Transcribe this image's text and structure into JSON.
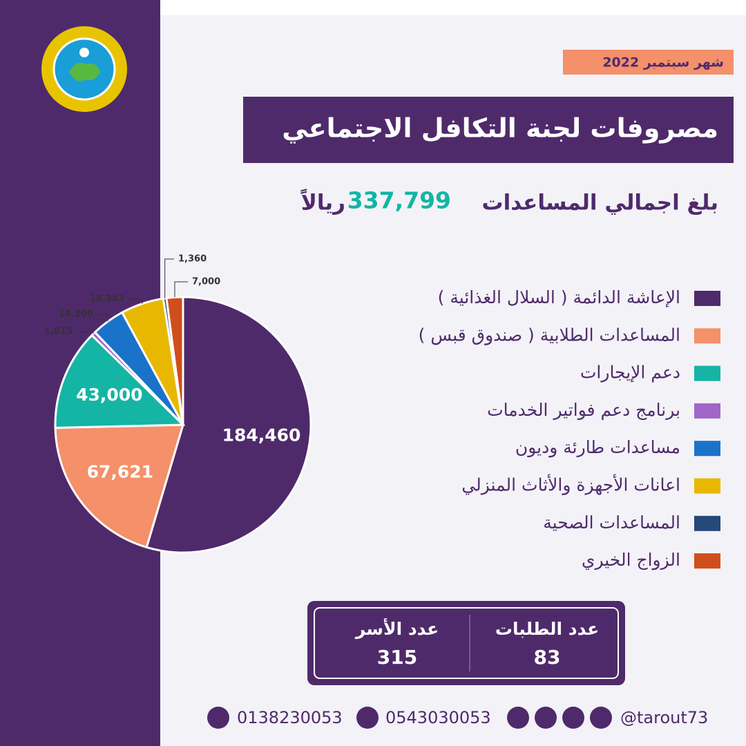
{
  "header": {
    "month": "شهر سبتمبر 2022",
    "total_prefix": "بلغ اجمالي المساعدات",
    "total": "337,799",
    "total_suffix": "ريالاً"
  },
  "chart_data": {
    "type": "pie",
    "title": "مصروفات لجنة التكافل الاجتماعي",
    "categories": [
      "الإعاشة الدائمة ( السلال الغذائية )",
      "المساعدات الطلابية ( صندوق قبس )",
      "دعم الإيجارات",
      "برنامج دعم فواتير الخدمات",
      "مساعدات طارئة وديون",
      "اعانات الأجهزة والأثاث المنزلي",
      "المساعدات الصحية",
      "الزواج الخيري"
    ],
    "values": [
      184460,
      67621,
      43000,
      1815,
      14200,
      18343,
      1360,
      7000
    ],
    "value_labels": [
      "184,460",
      "67,621",
      "43,000",
      "1,815",
      "14,200",
      "18,343",
      "1,360",
      "7,000"
    ],
    "colors": [
      "#4f2a6b",
      "#f4906a",
      "#14b5a4",
      "#a066c8",
      "#1a73c9",
      "#e8b800",
      "#24497a",
      "#d04e1c"
    ]
  },
  "stats": [
    {
      "label": "عدد الطلبات",
      "value": "83"
    },
    {
      "label": "عدد الأسر",
      "value": "315"
    }
  ],
  "contact": {
    "phone": "0138230053",
    "whatsapp": "0543030053",
    "handle": "@tarout73"
  }
}
